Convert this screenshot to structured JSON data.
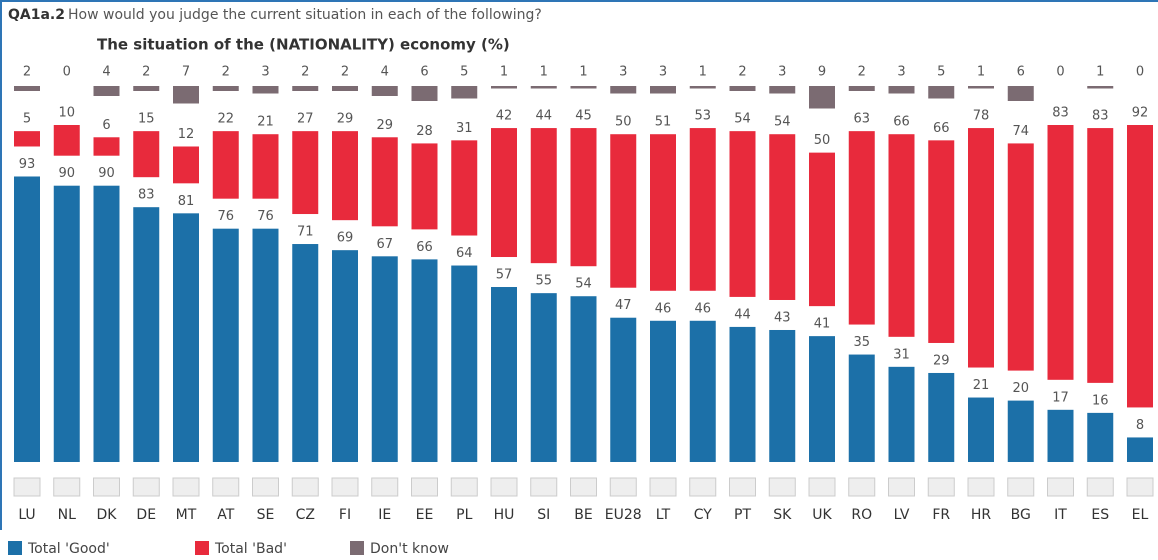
{
  "chart_data": {
    "type": "stacked_bar",
    "code": "QA1a.2",
    "title": "How would you judge the current situation in each of the following?",
    "subtitle": "The situation of the (NATIONALITY) economy (%)",
    "categories": [
      "LU",
      "NL",
      "DK",
      "DE",
      "MT",
      "AT",
      "SE",
      "CZ",
      "FI",
      "IE",
      "EE",
      "PL",
      "HU",
      "SI",
      "BE",
      "EU28",
      "LT",
      "CY",
      "PT",
      "SK",
      "UK",
      "RO",
      "LV",
      "FR",
      "HR",
      "BG",
      "IT",
      "ES",
      "EL"
    ],
    "series": [
      {
        "name": "Total 'Good'",
        "color": "#1c70a8",
        "values": [
          93,
          90,
          90,
          83,
          81,
          76,
          76,
          71,
          69,
          67,
          66,
          64,
          57,
          55,
          54,
          47,
          46,
          46,
          44,
          43,
          41,
          35,
          31,
          29,
          21,
          20,
          17,
          16,
          8
        ]
      },
      {
        "name": "Total 'Bad'",
        "color": "#e82a3c",
        "values": [
          5,
          10,
          6,
          15,
          12,
          22,
          21,
          27,
          29,
          29,
          28,
          31,
          42,
          44,
          45,
          50,
          51,
          53,
          54,
          54,
          50,
          63,
          66,
          66,
          78,
          74,
          83,
          83,
          92
        ]
      },
      {
        "name": "Don't know",
        "color": "#7b6b72",
        "values": [
          2,
          0,
          4,
          2,
          7,
          2,
          3,
          2,
          2,
          4,
          6,
          5,
          1,
          1,
          1,
          3,
          3,
          1,
          2,
          3,
          9,
          2,
          3,
          5,
          1,
          6,
          0,
          1,
          0
        ]
      }
    ]
  }
}
